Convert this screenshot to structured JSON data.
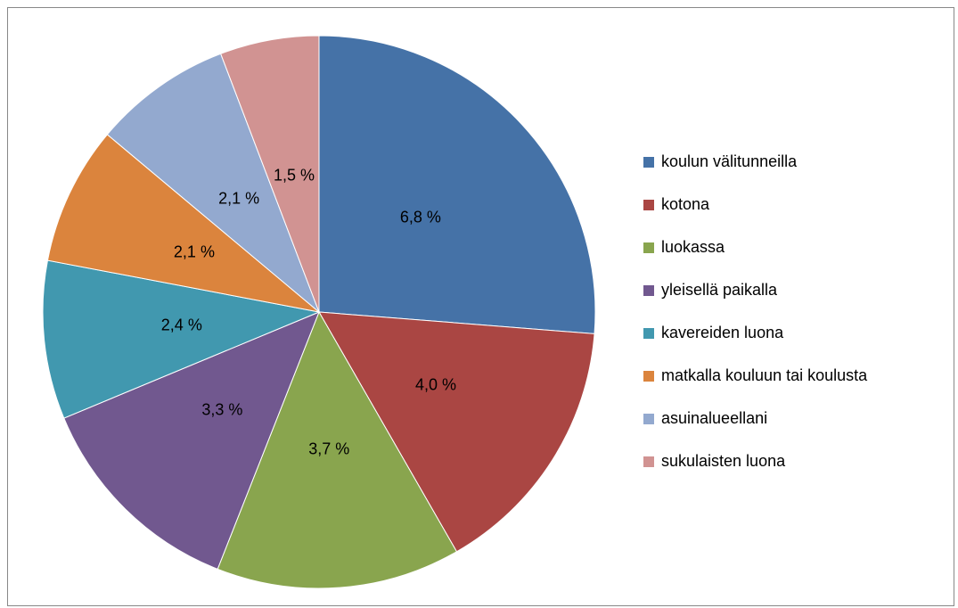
{
  "chart_data": {
    "type": "pie",
    "categories": [
      "koulun välitunneilla",
      "kotona",
      "luokassa",
      "yleisellä paikalla",
      "kavereiden luona",
      "matkalla kouluun tai koulusta",
      "asuinalueellani",
      "sukulaisten luona"
    ],
    "values": [
      6.8,
      4.0,
      3.7,
      3.3,
      2.4,
      2.1,
      2.1,
      1.5
    ],
    "value_labels": [
      "6,8 %",
      "4,0 %",
      "3,7 %",
      "3,3 %",
      "2,4 %",
      "2,1 %",
      "2,1 %",
      "1,5 %"
    ],
    "colors": [
      "#4572a7",
      "#aa4643",
      "#89a54e",
      "#71588f",
      "#4198af",
      "#db843d",
      "#93a9cf",
      "#d19392"
    ],
    "legend": "right"
  }
}
